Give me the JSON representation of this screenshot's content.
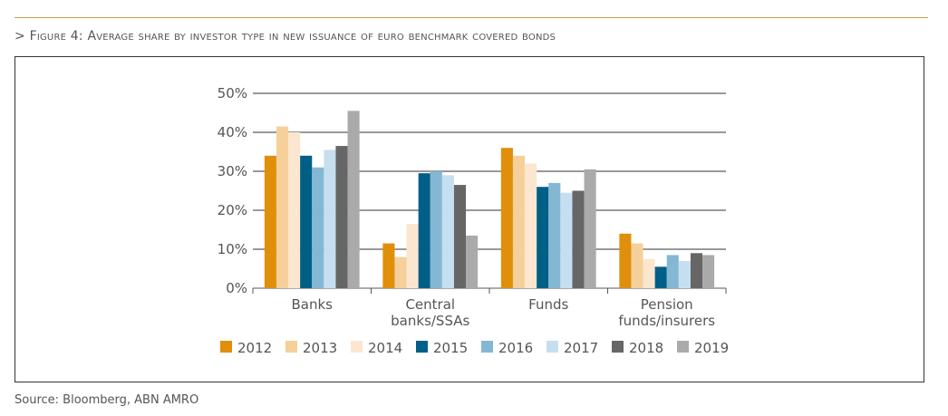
{
  "figure": {
    "label": "> Figure 4:",
    "title": "Average share by investor type in new issuance of euro benchmark covered bonds"
  },
  "source": "Source: Bloomberg, ABN AMRO",
  "chart_data": {
    "type": "bar",
    "categories": [
      "Banks",
      "Central banks/SSAs",
      "Funds",
      "Pension funds/insurers"
    ],
    "category_lines": [
      [
        "Banks"
      ],
      [
        "Central",
        "banks/SSAs"
      ],
      [
        "Funds"
      ],
      [
        "Pension",
        "funds/insurers"
      ]
    ],
    "series": [
      {
        "name": "2012",
        "color": "#e08f0b",
        "values": [
          34,
          11.5,
          36,
          14
        ]
      },
      {
        "name": "2013",
        "color": "#f6d09a",
        "values": [
          41.5,
          8,
          34,
          11.5
        ]
      },
      {
        "name": "2014",
        "color": "#fbe6cf",
        "values": [
          40,
          16.5,
          32,
          7.5
        ]
      },
      {
        "name": "2015",
        "color": "#005f87",
        "values": [
          34,
          29.5,
          26,
          5.5
        ]
      },
      {
        "name": "2016",
        "color": "#84b7d3",
        "values": [
          31,
          30,
          27,
          8.5
        ]
      },
      {
        "name": "2017",
        "color": "#c6dff0",
        "values": [
          35.5,
          29,
          24.5,
          7
        ]
      },
      {
        "name": "2018",
        "color": "#666666",
        "values": [
          36.5,
          26.5,
          25,
          9
        ]
      },
      {
        "name": "2019",
        "color": "#aaaaaa",
        "values": [
          45.5,
          13.5,
          30.5,
          8.5
        ]
      }
    ],
    "ylim": [
      0,
      50
    ],
    "yticks": [
      0,
      10,
      20,
      30,
      40,
      50
    ],
    "ytick_labels": [
      "0%",
      "10%",
      "20%",
      "30%",
      "40%",
      "50%"
    ],
    "grid": true,
    "legend": "bottom"
  }
}
